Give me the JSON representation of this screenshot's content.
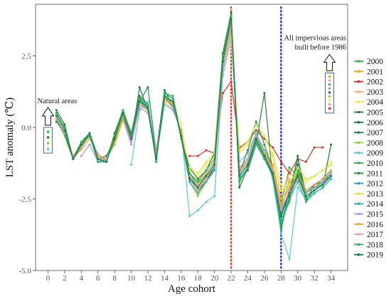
{
  "chart_data": {
    "type": "line",
    "xlabel": "Age cohort",
    "ylabel": "LST anomaly (℃)",
    "xlim": [
      -1.5,
      36
    ],
    "ylim": [
      -5.0,
      4.3
    ],
    "x_ticks": [
      0,
      2,
      4,
      6,
      8,
      10,
      12,
      14,
      16,
      18,
      20,
      22,
      24,
      26,
      28,
      30,
      32,
      34
    ],
    "y_ticks": [
      -5.0,
      -2.5,
      0.0,
      2.5
    ],
    "y_tick_labels": [
      "-5.0",
      "-2.5",
      "0.0",
      "2.5"
    ],
    "reference_lines": [
      {
        "x": 22,
        "color": "#e8332a",
        "style": "dotted"
      },
      {
        "x": 28,
        "color": "#1f1fd6",
        "style": "dotted"
      }
    ],
    "annotations": [
      {
        "text": "Natural areas",
        "x": 0,
        "box_y": [
          -0.9,
          0.0
        ]
      },
      {
        "text_lines": [
          "All impervious areas",
          "built before 1986"
        ],
        "x": 34,
        "box_y": [
          0.5,
          1.9
        ]
      }
    ],
    "legend_position": "right",
    "x": [
      1,
      2,
      3,
      4,
      5,
      6,
      7,
      8,
      9,
      10,
      11,
      12,
      13,
      14,
      15,
      16,
      17,
      18,
      19,
      20,
      21,
      22,
      23,
      24,
      25,
      26,
      27,
      28,
      29,
      30,
      31,
      32,
      33,
      34
    ],
    "series": [
      {
        "name": "2000",
        "color": "#2db84a",
        "values": [
          0.3,
          -0.3,
          -1.1,
          -0.6,
          -0.3,
          -1.0,
          -1.1,
          -0.4,
          0.5,
          -0.4,
          0.9,
          0.6,
          -1.1,
          1.1,
          0.7,
          -0.2,
          -1.6,
          -1.9,
          -1.7,
          -1.3,
          2.1,
          3.9,
          -1.7,
          -1.3,
          -0.4,
          -1.0,
          -1.5,
          -2.7,
          -1.4,
          -1.7,
          -2.3,
          -2.1,
          -1.9,
          -1.6
        ]
      },
      {
        "name": "2001",
        "color": "#f2a21e",
        "values": [
          0.5,
          0.0,
          -1.0,
          -0.7,
          -0.2,
          -1.1,
          -1.0,
          -0.5,
          0.4,
          -0.5,
          1.0,
          0.7,
          -1.0,
          1.0,
          0.8,
          -0.3,
          -1.7,
          -2.1,
          -1.6,
          -1.2,
          2.3,
          3.5,
          -1.5,
          -1.1,
          -0.2,
          -0.8,
          -1.3,
          -2.5,
          -1.6,
          -1.8,
          -2.2,
          -2.0,
          -1.8,
          -1.5
        ]
      },
      {
        "name": "2002",
        "color": "#d72b21",
        "values": [
          null,
          null,
          null,
          null,
          null,
          null,
          null,
          null,
          null,
          null,
          null,
          null,
          null,
          null,
          null,
          null,
          -1.0,
          -1.0,
          -0.8,
          -0.9,
          1.2,
          1.6,
          -0.7,
          -0.5,
          -0.1,
          -0.4,
          -0.7,
          -1.2,
          -1.6,
          -1.1,
          -1.2,
          -0.7,
          -0.7,
          null
        ]
      },
      {
        "name": "2003",
        "color": "#f7a87f",
        "values": [
          0.4,
          -0.1,
          -1.0,
          -0.8,
          -0.4,
          -0.9,
          -1.2,
          -0.3,
          0.3,
          -0.6,
          0.8,
          0.8,
          -0.9,
          0.9,
          0.6,
          -0.1,
          -1.9,
          -2.3,
          -1.8,
          -1.5,
          2.0,
          3.3,
          -1.6,
          -1.2,
          -0.5,
          -1.1,
          -1.6,
          -2.9,
          -1.8,
          -1.9,
          -2.4,
          -2.2,
          -2.0,
          -1.7
        ]
      },
      {
        "name": "2004",
        "color": "#f2ea3c",
        "values": [
          null,
          null,
          null,
          null,
          null,
          null,
          -1.0,
          -0.6,
          0.2,
          -0.3,
          0.7,
          0.5,
          -0.8,
          0.8,
          0.9,
          0.1,
          -1.5,
          -1.7,
          -1.3,
          -1.0,
          2.2,
          3.0,
          -0.9,
          -0.6,
          0.1,
          -0.3,
          -0.9,
          -2.0,
          -2.3,
          -1.5,
          -1.9,
          -1.7,
          -1.5,
          -1.2
        ]
      },
      {
        "name": "2005",
        "color": "#1f7a34",
        "values": [
          0.6,
          0.1,
          -1.1,
          -0.5,
          -0.2,
          -1.2,
          -1.2,
          -0.2,
          0.6,
          -0.2,
          1.1,
          0.8,
          -1.2,
          1.2,
          1.0,
          -0.4,
          -1.4,
          -1.8,
          -1.5,
          -0.9,
          2.6,
          4.0,
          -1.8,
          -1.5,
          -0.6,
          1.2,
          -1.8,
          -3.5,
          -2.4,
          -1.0,
          -2.6,
          -2.0,
          -1.9,
          -1.6
        ]
      },
      {
        "name": "2006",
        "color": "#18753a",
        "values": [
          0.3,
          -0.2,
          -1.1,
          -0.6,
          -0.3,
          -1.0,
          -1.1,
          -0.5,
          0.4,
          -0.5,
          1.4,
          0.6,
          -1.1,
          1.0,
          0.9,
          -0.3,
          -1.8,
          -2.2,
          -1.9,
          -1.4,
          2.4,
          3.8,
          -2.1,
          -1.4,
          -0.3,
          -0.9,
          -1.7,
          -3.0,
          -2.2,
          -1.3,
          -2.5,
          -2.3,
          -2.1,
          -0.6
        ]
      },
      {
        "name": "2007",
        "color": "#0f8a55",
        "values": [
          0.2,
          -0.2,
          -1.0,
          -0.7,
          -0.2,
          -1.1,
          -1.0,
          -0.4,
          0.5,
          -0.4,
          0.9,
          1.4,
          -0.9,
          1.3,
          0.7,
          -0.2,
          -1.7,
          -2.1,
          -1.7,
          -1.3,
          2.2,
          3.9,
          -1.6,
          -1.2,
          -0.4,
          -1.0,
          -1.5,
          -3.6,
          -2.1,
          -1.7,
          -2.3,
          -2.1,
          -2.0,
          -1.6
        ]
      },
      {
        "name": "2008",
        "color": "#94c83e",
        "values": [
          0.4,
          -0.1,
          -1.0,
          -0.6,
          -0.3,
          -1.0,
          -1.1,
          -0.6,
          0.3,
          -0.5,
          0.8,
          0.7,
          -1.0,
          1.1,
          0.8,
          -0.2,
          -1.9,
          -2.4,
          -1.9,
          -1.5,
          2.0,
          3.4,
          -1.5,
          -1.1,
          -0.3,
          -0.8,
          -1.4,
          -2.8,
          -1.9,
          -1.6,
          -2.5,
          -2.2,
          -1.9,
          -1.5
        ]
      },
      {
        "name": "2009",
        "color": "#5bc3cf",
        "values": [
          null,
          null,
          null,
          null,
          null,
          null,
          null,
          null,
          null,
          -1.3,
          0.6,
          0.9,
          -1.0,
          0.8,
          0.6,
          -0.1,
          -3.1,
          -2.9,
          -2.6,
          -2.4,
          1.8,
          3.1,
          -1.2,
          -0.9,
          -0.2,
          -0.8,
          -1.8,
          -3.7,
          -4.6,
          -2.1,
          -2.5,
          -2.3,
          -2.1,
          -1.8
        ]
      },
      {
        "name": "2010",
        "color": "#2fb04f",
        "values": [
          0.5,
          0.0,
          -1.1,
          -0.6,
          -0.2,
          -1.2,
          -1.1,
          -0.3,
          0.6,
          -0.3,
          1.0,
          0.6,
          -1.2,
          1.2,
          1.1,
          -0.3,
          -1.6,
          -2.0,
          -1.6,
          -1.2,
          2.5,
          3.9,
          -1.9,
          -1.4,
          -0.5,
          -1.1,
          -1.6,
          -3.3,
          -2.6,
          -1.5,
          -2.4,
          -2.2,
          -2.0,
          -1.7
        ]
      },
      {
        "name": "2011",
        "color": "#1a8e3e",
        "values": [
          0.3,
          -0.2,
          -1.1,
          -0.7,
          -0.3,
          -1.1,
          -1.2,
          -0.4,
          0.4,
          -0.4,
          0.9,
          0.7,
          -1.1,
          1.0,
          0.8,
          -0.2,
          -1.8,
          -2.2,
          -1.8,
          -1.4,
          2.2,
          3.7,
          -1.6,
          -0.8,
          0.2,
          -0.6,
          -1.5,
          -3.1,
          -2.2,
          -1.1,
          -2.3,
          -2.0,
          -1.8,
          -1.5
        ]
      },
      {
        "name": "2012",
        "color": "#2994d4",
        "values": [
          0.4,
          -0.1,
          -1.0,
          -0.6,
          -0.2,
          -1.0,
          -1.1,
          -0.5,
          0.5,
          -0.5,
          0.8,
          0.6,
          -1.0,
          1.1,
          0.9,
          -0.3,
          -1.7,
          -2.1,
          -1.7,
          -1.3,
          2.1,
          3.6,
          -1.7,
          -1.3,
          -0.4,
          -1.0,
          -1.6,
          -3.0,
          -2.3,
          -1.8,
          -2.3,
          -2.1,
          -1.9,
          -1.6
        ]
      },
      {
        "name": "2013",
        "color": "#dfe03a",
        "values": [
          null,
          null,
          null,
          null,
          null,
          null,
          null,
          null,
          null,
          null,
          null,
          null,
          null,
          null,
          null,
          null,
          -1.4,
          -1.6,
          -1.2,
          -0.9,
          2.3,
          3.2,
          -0.8,
          -0.5,
          0.1,
          -0.3,
          -1.0,
          -2.2,
          -2.0,
          -1.4,
          -1.8,
          -1.7,
          -1.5,
          -1.3
        ]
      },
      {
        "name": "2014",
        "color": "#20b7a7",
        "values": [
          0.5,
          0.0,
          -1.1,
          -0.5,
          -0.2,
          -1.1,
          -1.2,
          -0.4,
          0.5,
          -0.3,
          1.0,
          0.7,
          -1.1,
          1.2,
          1.0,
          -0.4,
          -1.9,
          -2.3,
          -1.9,
          -1.5,
          2.3,
          3.8,
          -1.8,
          -1.4,
          -0.6,
          -1.1,
          -1.7,
          -3.2,
          -2.5,
          -1.9,
          -2.6,
          -2.3,
          -2.1,
          -1.8
        ]
      },
      {
        "name": "2015",
        "color": "#a995e0",
        "values": [
          null,
          null,
          null,
          -1.0,
          -0.6,
          -1.2,
          -1.1,
          -0.4,
          0.3,
          -0.6,
          0.7,
          0.5,
          -0.9,
          1.0,
          0.7,
          -0.2,
          -1.8,
          -2.1,
          -1.7,
          -1.4,
          2.0,
          3.5,
          -1.4,
          -1.1,
          -0.3,
          -0.9,
          -1.5,
          -2.8,
          -2.3,
          -1.8,
          -2.3,
          -2.1,
          -1.9,
          -1.6
        ]
      },
      {
        "name": "2016",
        "color": "#f0a534",
        "values": [
          0.4,
          -0.1,
          -1.0,
          -0.7,
          -0.3,
          -1.0,
          -1.1,
          -0.5,
          0.4,
          -0.4,
          0.9,
          0.6,
          -1.0,
          1.0,
          0.8,
          -0.2,
          -1.7,
          -2.0,
          -1.6,
          -1.2,
          2.2,
          3.7,
          -1.5,
          -1.2,
          -0.4,
          -0.9,
          -1.4,
          -2.7,
          -2.1,
          -1.6,
          -2.2,
          -2.0,
          -1.8,
          -1.5
        ]
      },
      {
        "name": "2017",
        "color": "#f39aaa",
        "values": [
          0.3,
          -0.2,
          -1.0,
          -0.6,
          -0.2,
          -1.1,
          -1.1,
          -0.4,
          0.5,
          -0.5,
          0.8,
          0.7,
          -1.1,
          1.1,
          0.9,
          -0.3,
          -1.8,
          -2.2,
          -1.8,
          -1.3,
          2.1,
          3.6,
          -1.6,
          -1.2,
          -0.4,
          -1.0,
          -1.5,
          -2.9,
          -2.2,
          -1.7,
          -2.4,
          -2.2,
          -2.0,
          -1.7
        ]
      },
      {
        "name": "2018",
        "color": "#27b055",
        "values": [
          0.5,
          0.0,
          -1.1,
          -0.5,
          -0.3,
          -1.2,
          -1.2,
          -0.3,
          0.6,
          -0.3,
          1.0,
          0.8,
          -1.2,
          1.2,
          1.0,
          -0.4,
          -1.6,
          -1.9,
          -1.5,
          -1.1,
          2.4,
          3.9,
          -1.9,
          -1.4,
          -0.5,
          -1.1,
          -1.7,
          -3.4,
          -2.5,
          -1.6,
          -2.5,
          -2.2,
          -2.0,
          -1.7
        ]
      },
      {
        "name": "2019",
        "color": "#167a4e",
        "values": [
          0.4,
          -0.1,
          -1.1,
          -0.6,
          -0.2,
          -1.1,
          -1.2,
          -0.4,
          0.5,
          -0.4,
          0.9,
          0.7,
          -1.1,
          1.1,
          0.9,
          -0.3,
          -1.8,
          -2.1,
          -1.7,
          -1.3,
          2.3,
          3.8,
          -1.7,
          -1.3,
          -0.4,
          -1.0,
          -1.6,
          -3.1,
          -2.3,
          -1.7,
          -2.4,
          -2.2,
          -2.0,
          -1.7
        ]
      }
    ]
  }
}
